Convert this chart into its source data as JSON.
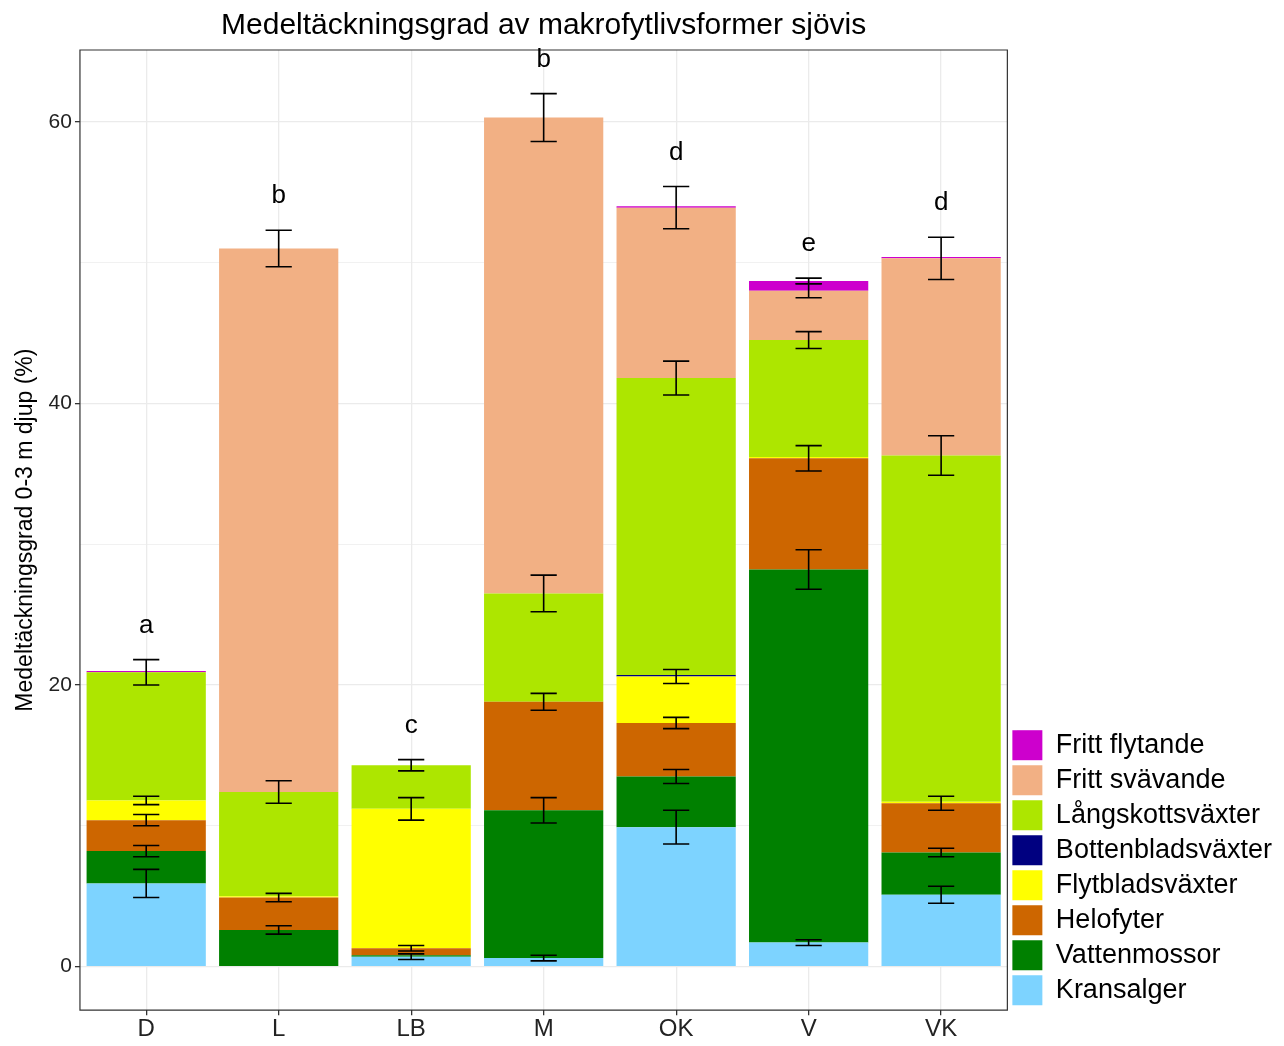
{
  "chart_data": {
    "type": "bar",
    "title": "Medeltäckningsgrad av makrofytlivsformer sjövis",
    "ylabel": "Medeltäckningsgrad 0-3 m djup (%)",
    "categories": [
      "D",
      "L",
      "LB",
      "M",
      "OK",
      "V",
      "VK"
    ],
    "stacked": true,
    "series": [
      {
        "name": "Kransalger",
        "color": "#7dd3ff",
        "values": [
          5.9,
          0,
          0.7,
          0.6,
          9.9,
          1.7,
          5.1
        ],
        "errors": [
          1.0,
          null,
          0.2,
          0.2,
          1.2,
          0.2,
          0.6
        ]
      },
      {
        "name": "Vattenmossor",
        "color": "#008000",
        "values": [
          2.3,
          2.6,
          0.1,
          10.5,
          3.6,
          26.5,
          3.0
        ],
        "errors": [
          0.4,
          0.3,
          null,
          0.9,
          0.5,
          1.4,
          0.3
        ]
      },
      {
        "name": "Helofyter",
        "color": "#cd6600",
        "values": [
          2.2,
          2.3,
          0.5,
          7.7,
          3.8,
          7.9,
          3.5
        ],
        "errors": [
          0.4,
          0.3,
          0.2,
          0.6,
          0.4,
          0.9,
          0.5
        ]
      },
      {
        "name": "Flytbladsväxter",
        "color": "#ffff00",
        "values": [
          1.4,
          0.1,
          9.9,
          0,
          3.3,
          0.1,
          0.1
        ],
        "errors": [
          0.3,
          null,
          0.8,
          null,
          0.5,
          null,
          null
        ]
      },
      {
        "name": "Bottenbladsväxter",
        "color": "#000080",
        "values": [
          0,
          0,
          0,
          0,
          0.1,
          0,
          0
        ]
      },
      {
        "name": "Långskottsväxter",
        "color": "#ade600",
        "values": [
          9.1,
          7.4,
          3.1,
          7.7,
          21.1,
          8.3,
          24.6
        ],
        "errors": [
          0.9,
          0.8,
          0.4,
          1.3,
          1.2,
          0.6,
          1.4
        ]
      },
      {
        "name": "Fritt svävande",
        "color": "#f2b084",
        "values": [
          0,
          38.6,
          0,
          33.8,
          12.1,
          3.5,
          14.0
        ],
        "errors": [
          null,
          1.3,
          null,
          1.7,
          1.5,
          0.5,
          1.5
        ]
      },
      {
        "name": "Fritt flytande",
        "color": "#cd00cd",
        "values": [
          0.1,
          0,
          0,
          0,
          0.1,
          0.7,
          0.1
        ],
        "errors": [
          null,
          null,
          null,
          null,
          null,
          0.2,
          null
        ]
      }
    ],
    "ylim": [
      -3.1,
      65.1
    ],
    "yticks": [
      0,
      {
        "value": 10,
        "label": null
      },
      20,
      {
        "value": 30,
        "label": null
      },
      40,
      {
        "value": 50,
        "label": null
      },
      60
    ],
    "grid": true,
    "legend": "bottom right",
    "annotations": [
      {
        "text": "a",
        "x": "D",
        "y": 21.0
      },
      {
        "text": "b",
        "x": "L",
        "y": 51.0
      },
      {
        "text": "c",
        "x": "LB",
        "y": 14.3
      },
      {
        "text": "b",
        "x": "M",
        "y": 60.3
      },
      {
        "text": "d",
        "x": "OK",
        "y": 54.0
      },
      {
        "text": "e",
        "x": "V",
        "y": 48.7
      },
      {
        "text": "d",
        "x": "VK",
        "y": 50.4
      }
    ]
  }
}
